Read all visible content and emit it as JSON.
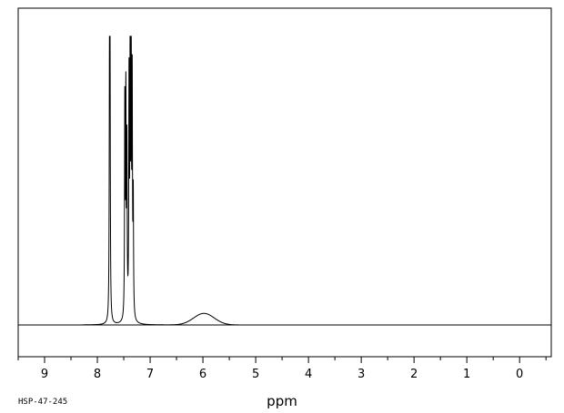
{
  "caption": "HSP-47-245",
  "chart_data": {
    "type": "line",
    "title": "",
    "xlabel": "ppm",
    "ylabel": "",
    "xlim": [
      9.5,
      -0.6
    ],
    "x_reversed": true,
    "ylim": [
      -0.15,
      1.0
    ],
    "grid": false,
    "tick_labels": [
      "9",
      "8",
      "7",
      "6",
      "5",
      "4",
      "3",
      "2",
      "1",
      "0"
    ],
    "tick_values": [
      9,
      8,
      7,
      6,
      5,
      4,
      3,
      2,
      1,
      0
    ],
    "peaks": [
      {
        "ppm": 7.77,
        "height": 0.87
      },
      {
        "ppm": 7.76,
        "height": 0.84
      },
      {
        "ppm": 7.48,
        "height": 0.74
      },
      {
        "ppm": 7.46,
        "height": 0.75
      },
      {
        "ppm": 7.44,
        "height": 0.58
      },
      {
        "ppm": 7.4,
        "height": 0.8
      },
      {
        "ppm": 7.38,
        "height": 0.85
      },
      {
        "ppm": 7.36,
        "height": 1.0
      },
      {
        "ppm": 7.34,
        "height": 0.79
      },
      {
        "ppm": 7.32,
        "height": 0.4
      }
    ],
    "broad_peak": {
      "ppm": 5.98,
      "height": 0.04,
      "width": 0.55
    },
    "trace_range": [
      8.3,
      4.3
    ]
  }
}
